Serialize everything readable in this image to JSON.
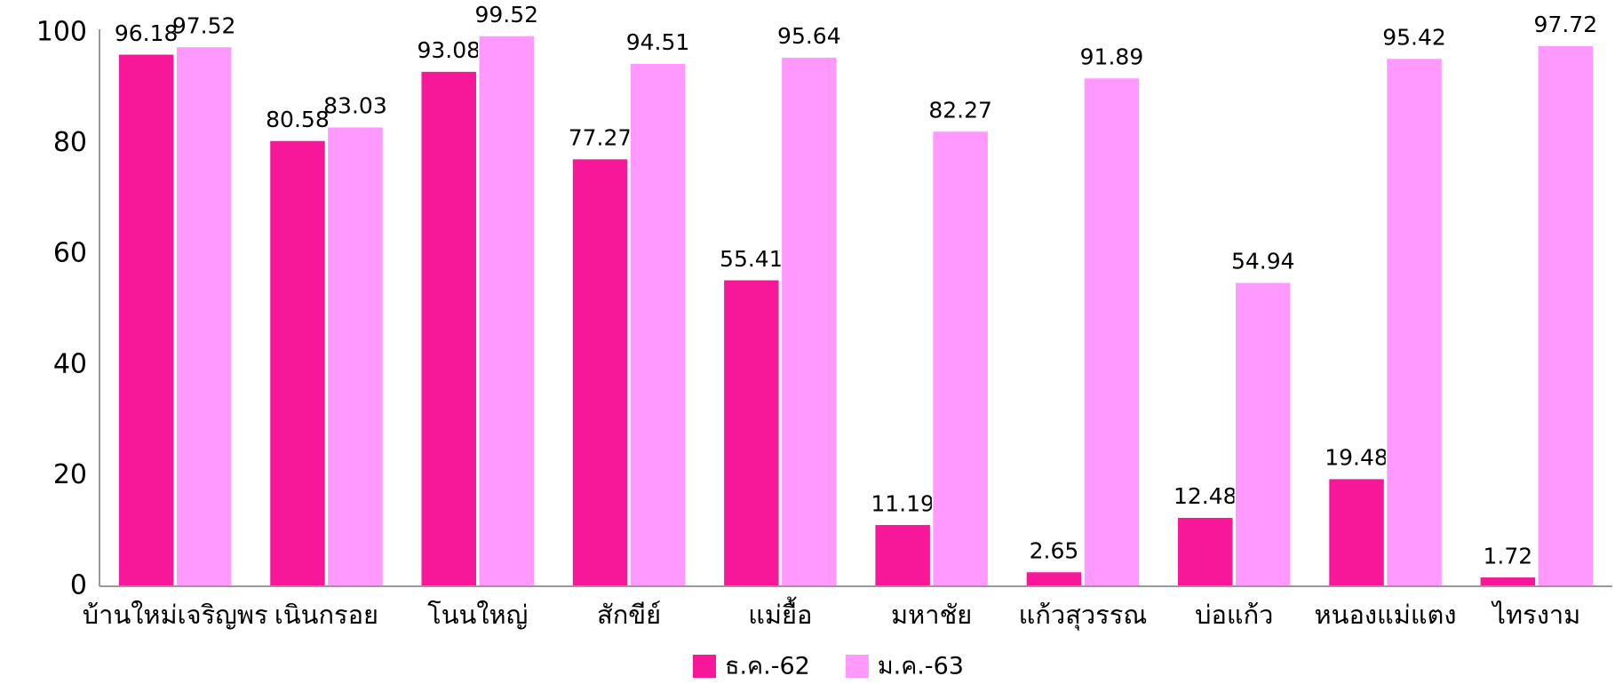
{
  "chart_data": {
    "type": "bar",
    "categories": [
      "บ้านใหม่เจริญพร",
      "เนินกรอย",
      "โนนใหญ่",
      "สักขีย์",
      "แม่ยื้อ",
      "มหาชัย",
      "แก้วสุวรรณ",
      "บ่อแก้ว",
      "หนองแม่แตง",
      "ไทรงาม"
    ],
    "series": [
      {
        "name": "ธ.ค.-62",
        "color": "#f7189a",
        "values": [
          96.18,
          80.58,
          93.08,
          77.27,
          55.41,
          11.19,
          2.65,
          12.48,
          19.48,
          1.72
        ]
      },
      {
        "name": "ม.ค.-63",
        "color": "#ff99ff",
        "values": [
          97.52,
          83.03,
          99.52,
          94.51,
          95.64,
          82.27,
          91.89,
          54.94,
          95.42,
          97.72
        ]
      }
    ],
    "ylim": [
      0,
      100
    ],
    "yticks": [
      0,
      20,
      40,
      60,
      80,
      100
    ],
    "grid": false,
    "legend": "bottom"
  }
}
